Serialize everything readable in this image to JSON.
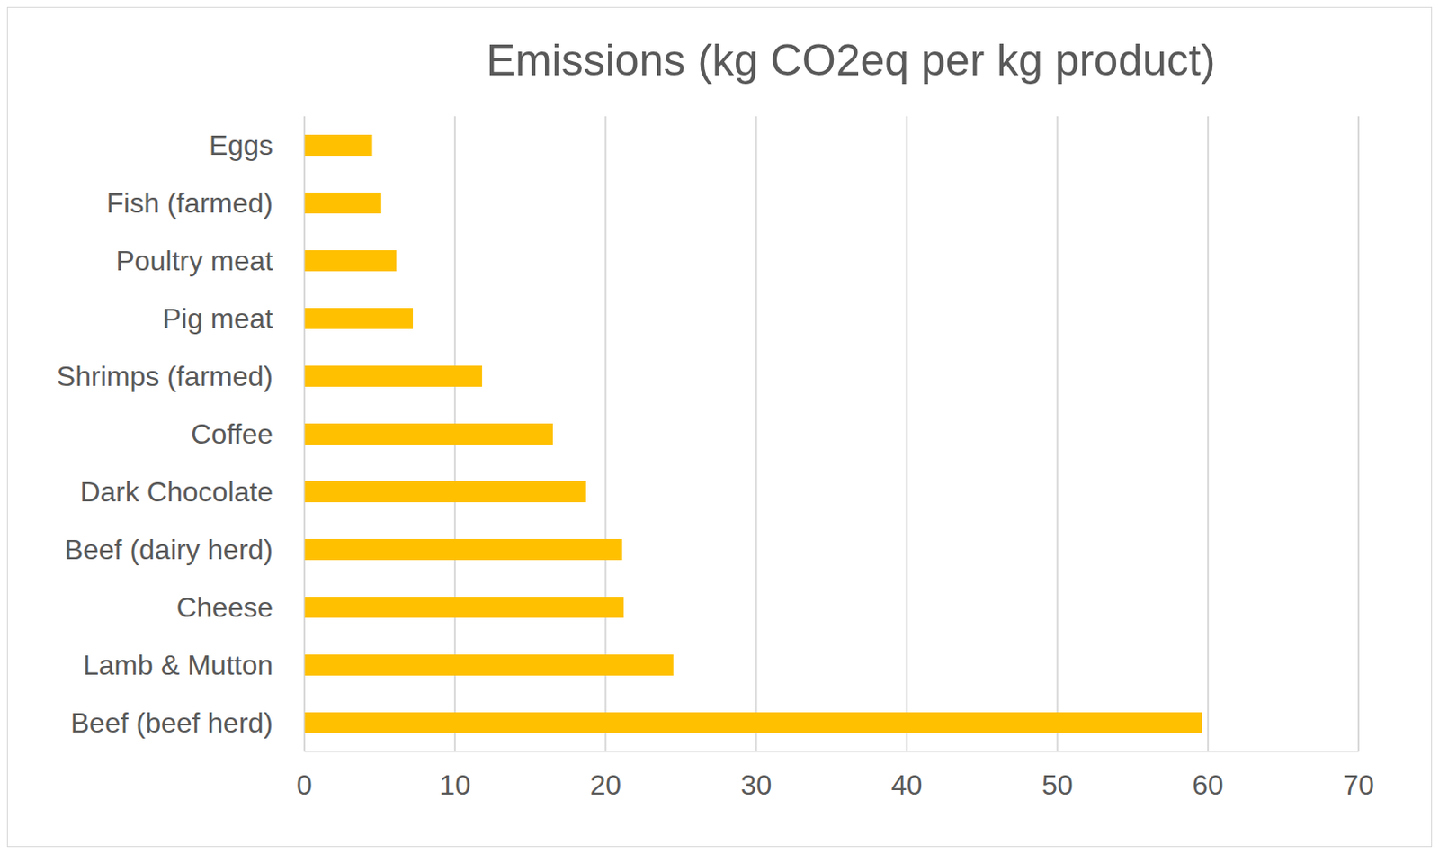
{
  "chart_data": {
    "type": "bar",
    "title": "Emissions (kg CO2eq per kg product)",
    "orientation": "horizontal",
    "categories": [
      "Eggs",
      "Fish (farmed)",
      "Poultry meat",
      "Pig meat",
      "Shrimps (farmed)",
      "Coffee",
      "Dark Chocolate",
      "Beef (dairy herd)",
      "Cheese",
      "Lamb & Mutton",
      "Beef (beef herd)"
    ],
    "values": [
      4.5,
      5.1,
      6.1,
      7.2,
      11.8,
      16.5,
      18.7,
      21.1,
      21.2,
      24.5,
      59.6
    ],
    "color": "#ffc000",
    "xlim": [
      0,
      70
    ],
    "xticks": [
      0,
      10,
      20,
      30,
      40,
      50,
      60,
      70
    ],
    "grid": true
  }
}
